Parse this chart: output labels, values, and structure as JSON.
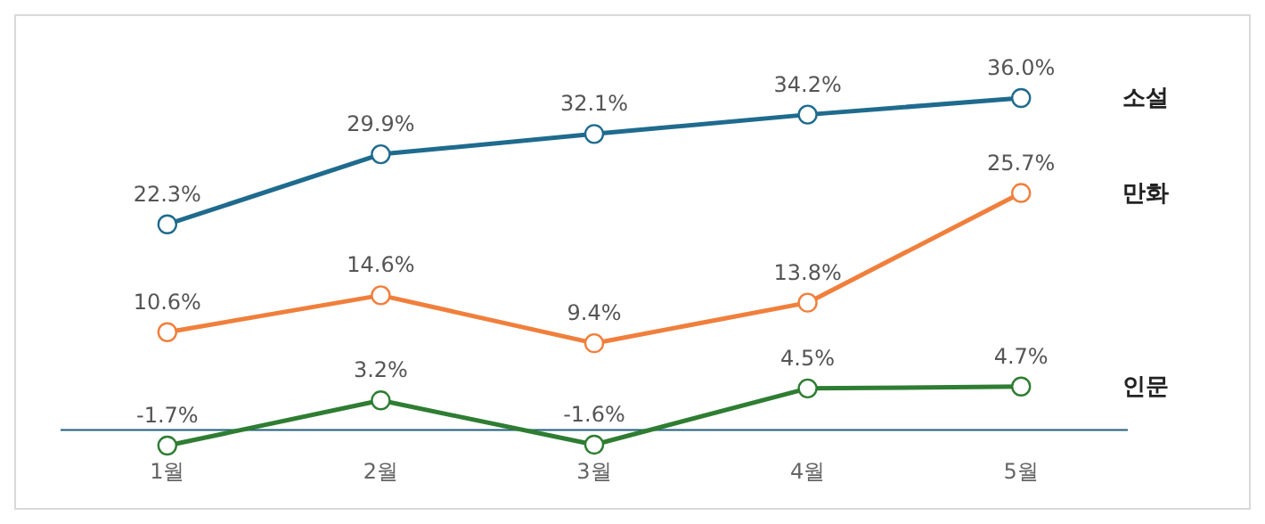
{
  "chart_data": {
    "type": "line",
    "categories": [
      "1월",
      "2월",
      "3월",
      "4월",
      "5월"
    ],
    "series": [
      {
        "name": "소설",
        "color": "#1f6b8e",
        "values": [
          22.3,
          29.9,
          32.1,
          34.2,
          36.0
        ],
        "value_labels": [
          "22.3%",
          "29.9%",
          "32.1%",
          "34.2%",
          "36.0%"
        ]
      },
      {
        "name": "만화",
        "color": "#f07f3c",
        "values": [
          10.6,
          14.6,
          9.4,
          13.8,
          25.7
        ],
        "value_labels": [
          "10.6%",
          "14.6%",
          "9.4%",
          "13.8%",
          "25.7%"
        ]
      },
      {
        "name": "인문",
        "color": "#2e7d32",
        "values": [
          -1.7,
          3.2,
          -1.6,
          4.5,
          4.7
        ],
        "value_labels": [
          "-1.7%",
          "3.2%",
          "-1.6%",
          "4.5%",
          "4.7%"
        ]
      }
    ],
    "marker": "circle",
    "line_style": "solid",
    "grid": false,
    "legend": false,
    "tick_labels": "x"
  }
}
